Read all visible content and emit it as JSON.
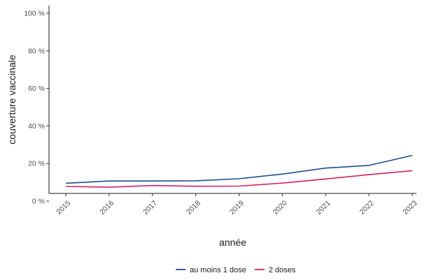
{
  "chart_data": {
    "type": "line",
    "title": "",
    "xlabel": "année",
    "ylabel": "couverture vaccinale",
    "x": [
      "2015",
      "2016",
      "2017",
      "2018",
      "2019",
      "2020",
      "2021",
      "2022",
      "2023"
    ],
    "yticks": [
      "0 %",
      "20 %",
      "40 %",
      "60 %",
      "80 %",
      "100 %"
    ],
    "ylim": [
      0,
      100
    ],
    "grid": false,
    "legend_position": "bottom",
    "series": [
      {
        "name": "au moins 1 dose",
        "color": "#1f4e8c",
        "values": [
          9.5,
          10.7,
          10.7,
          10.8,
          11.9,
          14.4,
          17.6,
          19.0,
          24.3
        ]
      },
      {
        "name": "2 doses",
        "color": "#d6215a",
        "values": [
          7.8,
          7.4,
          8.3,
          7.9,
          8.0,
          9.6,
          11.8,
          14.1,
          16.2
        ]
      }
    ]
  }
}
